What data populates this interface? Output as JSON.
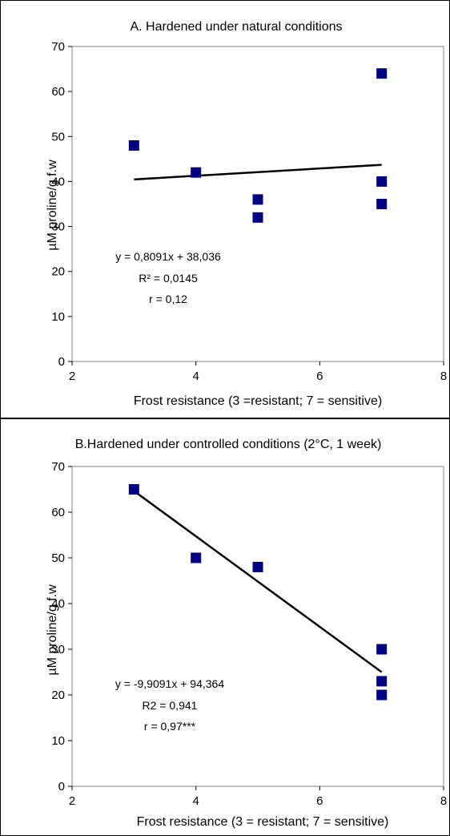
{
  "chart_data": [
    {
      "type": "scatter",
      "title": "A. Hardened under natural conditions",
      "xlabel": "Frost resistance (3 =resistant; 7 = sensitive)",
      "ylabel": "µM proline/g f.w",
      "xlim": [
        2,
        8
      ],
      "ylim": [
        0,
        70
      ],
      "xticks": [
        2,
        4,
        6,
        8
      ],
      "yticks": [
        0,
        10,
        20,
        30,
        40,
        50,
        60,
        70
      ],
      "grid": false,
      "marker_color": "#000080",
      "points": [
        {
          "x": 3,
          "y": 48
        },
        {
          "x": 4,
          "y": 42
        },
        {
          "x": 5,
          "y": 36
        },
        {
          "x": 5,
          "y": 32
        },
        {
          "x": 7,
          "y": 64
        },
        {
          "x": 7,
          "y": 40
        },
        {
          "x": 7,
          "y": 35
        }
      ],
      "trendline": {
        "slope": 0.8091,
        "intercept": 38.036,
        "x_range": [
          3,
          7
        ]
      },
      "annotations": [
        "y = 0,8091x + 38,036",
        "R² = 0,0145",
        "r = 0,12"
      ]
    },
    {
      "type": "scatter",
      "title": "B.Hardened under controlled conditions (2°C, 1 week)",
      "xlabel": "Frost resistance (3 = resistant; 7 = sensitive)",
      "ylabel": "µM proline/g f.w",
      "xlim": [
        2,
        8
      ],
      "ylim": [
        0,
        70
      ],
      "xticks": [
        2,
        4,
        6,
        8
      ],
      "yticks": [
        0,
        10,
        20,
        30,
        40,
        50,
        60,
        70
      ],
      "grid": false,
      "marker_color": "#000080",
      "points": [
        {
          "x": 3,
          "y": 65
        },
        {
          "x": 4,
          "y": 50
        },
        {
          "x": 5,
          "y": 48
        },
        {
          "x": 7,
          "y": 30
        },
        {
          "x": 7,
          "y": 23
        },
        {
          "x": 7,
          "y": 20
        }
      ],
      "trendline": {
        "slope": -9.9091,
        "intercept": 94.364,
        "x_range": [
          3,
          7
        ]
      },
      "annotations": [
        "y = -9,9091x + 94,364",
        "R2 = 0,941",
        "r = 0,97***"
      ]
    }
  ]
}
